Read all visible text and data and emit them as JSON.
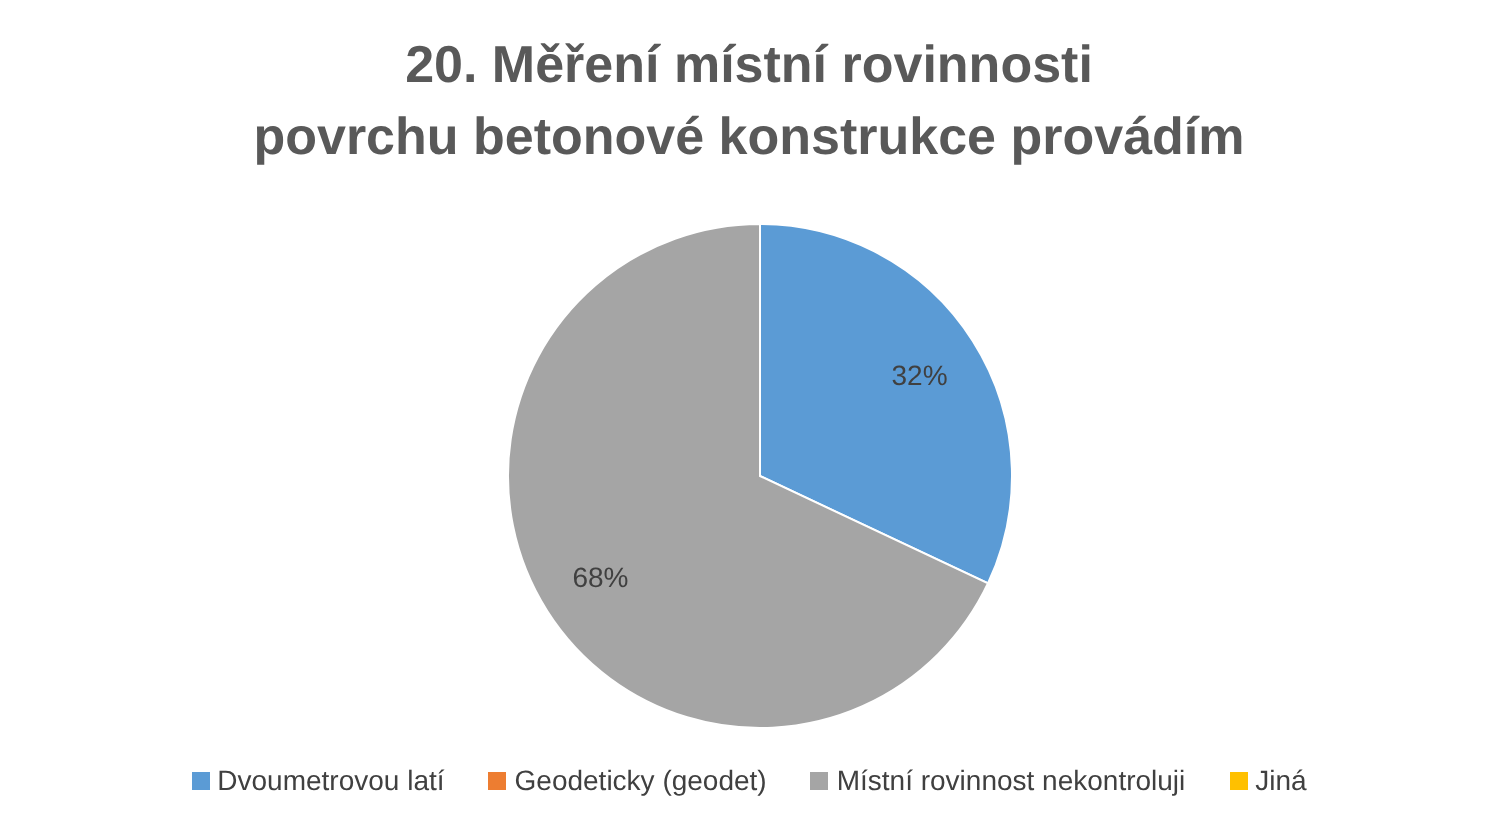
{
  "chart_data": {
    "type": "pie",
    "title": "20. Měření místní rovinnosti\npovrchu betonové konstrukce provádím",
    "categories": [
      "Dvoumetrovou latí",
      "Geodeticky (geodet)",
      "Místní rovinnost nekontroluji",
      "Jiná"
    ],
    "values": [
      32,
      0,
      68,
      0
    ],
    "colors": [
      "#5b9bd5",
      "#ed7d31",
      "#a5a5a5",
      "#ffc000"
    ],
    "value_labels": [
      "32%",
      null,
      "68%",
      null
    ],
    "legend": "bottom"
  }
}
